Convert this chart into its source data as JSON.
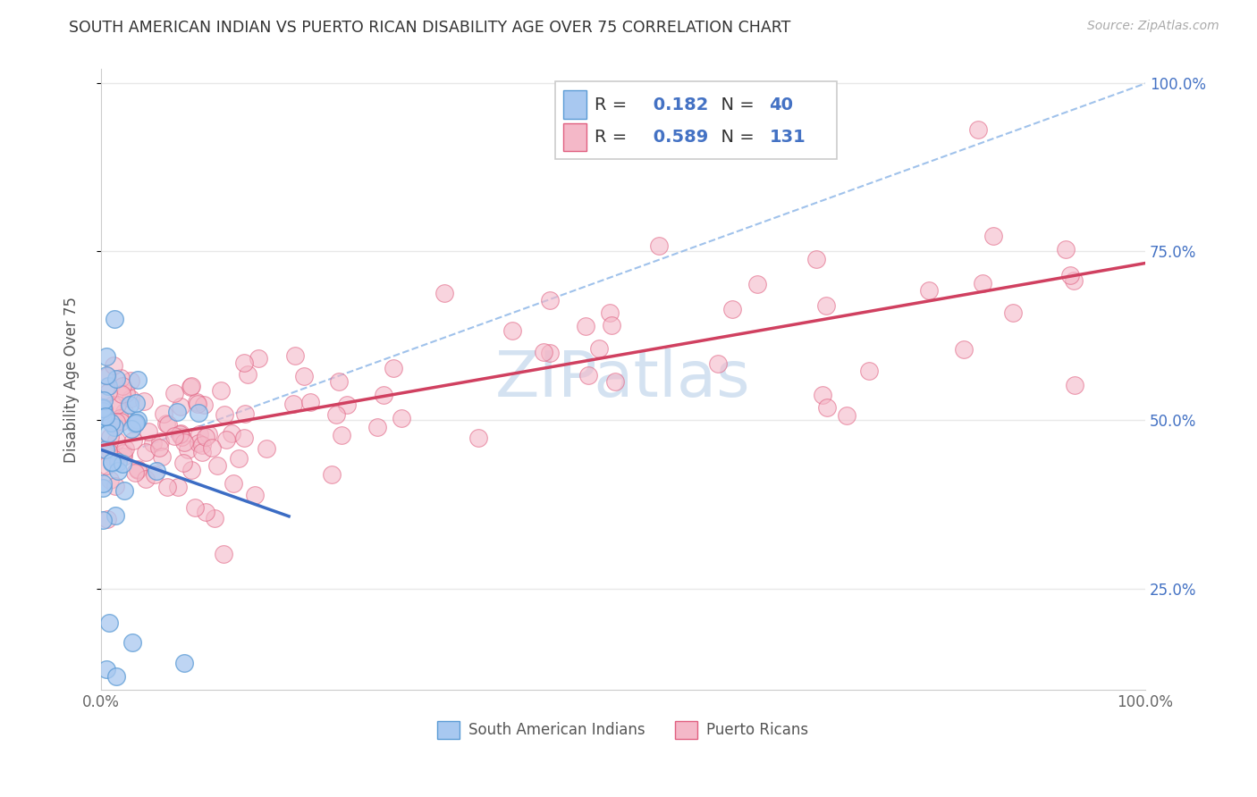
{
  "title": "SOUTH AMERICAN INDIAN VS PUERTO RICAN DISABILITY AGE OVER 75 CORRELATION CHART",
  "source": "Source: ZipAtlas.com",
  "ylabel": "Disability Age Over 75",
  "xlim": [
    0,
    1.0
  ],
  "ylim": [
    0.1,
    1.02
  ],
  "xticks": [
    0.0,
    0.25,
    0.5,
    0.75,
    1.0
  ],
  "xtick_labels": [
    "0.0%",
    "",
    "",
    "",
    "100.0%"
  ],
  "yticks_right": [
    0.25,
    0.5,
    0.75,
    1.0
  ],
  "ytick_labels_right": [
    "25.0%",
    "50.0%",
    "75.0%",
    "100.0%"
  ],
  "legend_R1": "0.182",
  "legend_N1": "40",
  "legend_R2": "0.589",
  "legend_N2": "131",
  "color_blue_fill": "#a8c8f0",
  "color_blue_edge": "#5b9bd5",
  "color_pink_fill": "#f4b8c8",
  "color_pink_edge": "#e06080",
  "color_blue_line": "#3b6cc4",
  "color_pink_line": "#d04060",
  "color_dashed": "#90b8e8",
  "title_color": "#333333",
  "axis_label_color": "#555555",
  "right_tick_color": "#4472c4",
  "background_color": "#ffffff",
  "grid_color": "#e8e8e8",
  "watermark_color": "#d0dff0",
  "source_color": "#aaaaaa"
}
